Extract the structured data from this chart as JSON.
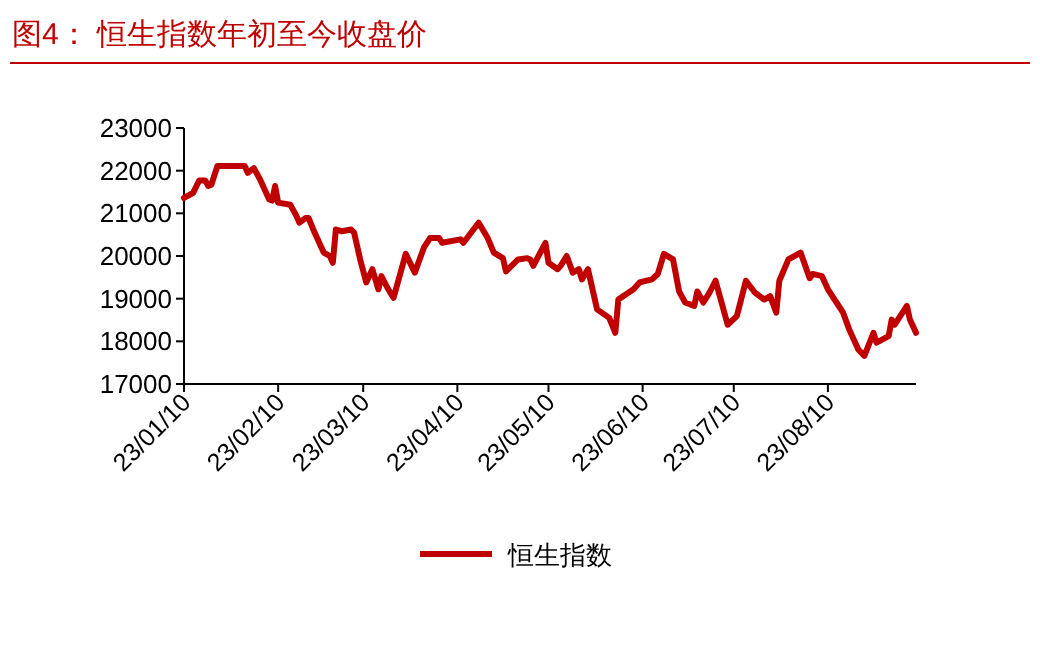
{
  "chart_data": {
    "type": "line",
    "title": "图4：  恒生指数年初至今收盘价",
    "legend": "bottom",
    "ylim": [
      17000,
      23000
    ],
    "yticks": [
      17000,
      18000,
      19000,
      20000,
      21000,
      22000,
      23000
    ],
    "xlim": [
      "--01-10",
      "--09-08"
    ],
    "xticks": [
      {
        "value": "--01-10",
        "label": "23/01/10"
      },
      {
        "value": "--02-10",
        "label": "23/02/10"
      },
      {
        "value": "--03-10",
        "label": "23/03/10"
      },
      {
        "value": "--04-10",
        "label": "23/04/10"
      },
      {
        "value": "--05-10",
        "label": "23/05/10"
      },
      {
        "value": "--06-10",
        "label": "23/06/10"
      },
      {
        "value": "--07-10",
        "label": "23/07/10"
      },
      {
        "value": "--08-10",
        "label": "23/08/10"
      }
    ],
    "series": [
      {
        "name": "恒生指数",
        "color": "#c00000",
        "x": [
          "--01-10",
          "--01-13",
          "--01-15",
          "--01-17",
          "--01-18",
          "--01-19",
          "--01-21",
          "--01-30",
          "--01-31",
          "--02-02",
          "--02-04",
          "--02-07",
          "--02-08",
          "--02-09",
          "--02-10",
          "--02-14",
          "--02-16",
          "--02-17",
          "--02-19",
          "--02-20",
          "--02-22",
          "--02-25",
          "--02-27",
          "--02-28",
          "--03-01",
          "--03-03",
          "--03-06",
          "--03-07",
          "--03-09",
          "--03-11",
          "--03-13",
          "--03-15",
          "--03-16",
          "--03-18",
          "--03-20",
          "--03-24",
          "--03-27",
          "--03-30",
          "--04-01",
          "--04-04",
          "--04-05",
          "--04-11",
          "--04-12",
          "--04-17",
          "--04-20",
          "--04-22",
          "--04-25",
          "--04-26",
          "--04-30",
          "--05-03",
          "--05-04",
          "--05-05",
          "--05-09",
          "--05-10",
          "--05-13",
          "--05-14",
          "--05-16",
          "--05-18",
          "--05-20",
          "--05-21",
          "--05-23",
          "--05-26",
          "--05-30",
          "--06-01",
          "--06-02",
          "--06-07",
          "--06-09",
          "--06-13",
          "--06-15",
          "--06-17",
          "--06-20",
          "--06-22",
          "--06-24",
          "--06-27",
          "--06-28",
          "--06-30",
          "--07-02",
          "--07-04",
          "--07-08",
          "--07-11",
          "--07-14",
          "--07-17",
          "--07-20",
          "--07-22",
          "--07-24",
          "--07-25",
          "--07-28",
          "--08-01",
          "--08-04",
          "--08-05",
          "--08-08",
          "--08-10",
          "--08-15",
          "--08-17",
          "--08-20",
          "--08-22",
          "--08-25",
          "--08-26",
          "--08-30",
          "--08-31",
          "--09-01",
          "--09-05",
          "--09-06",
          "--09-08"
        ],
        "values": [
          21360,
          21480,
          21770,
          21770,
          21640,
          21670,
          22110,
          22110,
          21950,
          22060,
          21800,
          21330,
          21300,
          21640,
          21250,
          21200,
          20940,
          20780,
          20890,
          20890,
          20550,
          20080,
          20000,
          19840,
          20620,
          20580,
          20620,
          20550,
          19920,
          19380,
          19690,
          19220,
          19530,
          19250,
          19020,
          20050,
          19610,
          20200,
          20420,
          20420,
          20310,
          20390,
          20310,
          20780,
          20420,
          20080,
          19950,
          19640,
          19920,
          19950,
          19920,
          19770,
          20310,
          19840,
          19690,
          19770,
          20000,
          19610,
          19690,
          19450,
          19690,
          18750,
          18550,
          18200,
          18980,
          19220,
          19380,
          19450,
          19580,
          20050,
          19920,
          19170,
          18910,
          18830,
          19170,
          18910,
          19140,
          19420,
          18390,
          18590,
          19420,
          19140,
          18980,
          19060,
          18670,
          19420,
          19920,
          20080,
          19480,
          19580,
          19530,
          19220,
          18670,
          18280,
          17810,
          17660,
          18200,
          17970,
          18120,
          18510,
          18390,
          18830,
          18510,
          18200
        ]
      }
    ]
  }
}
